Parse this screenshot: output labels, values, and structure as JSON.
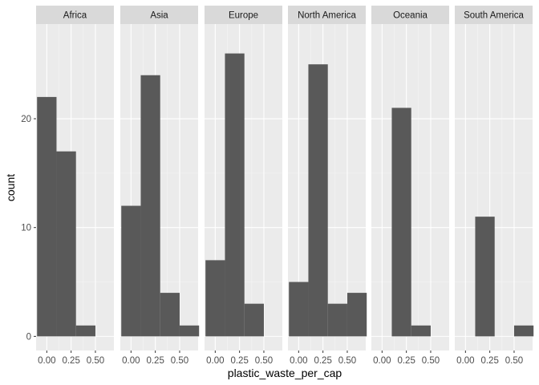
{
  "chart_data": {
    "type": "bar",
    "subtype": "faceted-histogram",
    "title": "",
    "xlabel": "plastic_waste_per_cap",
    "ylabel": "count",
    "xlim": [
      -0.11,
      0.69
    ],
    "ylim": [
      -1.3,
      28.7
    ],
    "x_ticks": [
      0,
      0.25,
      0.5
    ],
    "x_tick_labels": [
      "0.00",
      "0.25",
      "0.50"
    ],
    "y_ticks": [
      0,
      10,
      20
    ],
    "y_tick_labels": [
      "0",
      "10",
      "20"
    ],
    "bin_width": 0.2,
    "bins": [
      [
        -0.1,
        0.1
      ],
      [
        0.1,
        0.3
      ],
      [
        0.3,
        0.5
      ],
      [
        0.5,
        0.7
      ]
    ],
    "grid": true,
    "colors": {
      "bar": "#595959",
      "panel_background": "#ebebeb",
      "strip_background": "#d9d9d9",
      "grid_major": "#ffffff",
      "grid_minor": "#f5f5f5",
      "tick_text": "#4d4d4d"
    },
    "panels": [
      {
        "name": "Africa",
        "counts": [
          22,
          17,
          1,
          0
        ]
      },
      {
        "name": "Asia",
        "counts": [
          12,
          24,
          4,
          1
        ]
      },
      {
        "name": "Europe",
        "counts": [
          7,
          26,
          3,
          0
        ]
      },
      {
        "name": "North America",
        "counts": [
          5,
          25,
          3,
          4
        ]
      },
      {
        "name": "Oceania",
        "counts": [
          0,
          21,
          1,
          0
        ]
      },
      {
        "name": "South America",
        "counts": [
          0,
          11,
          0,
          1
        ]
      }
    ]
  }
}
